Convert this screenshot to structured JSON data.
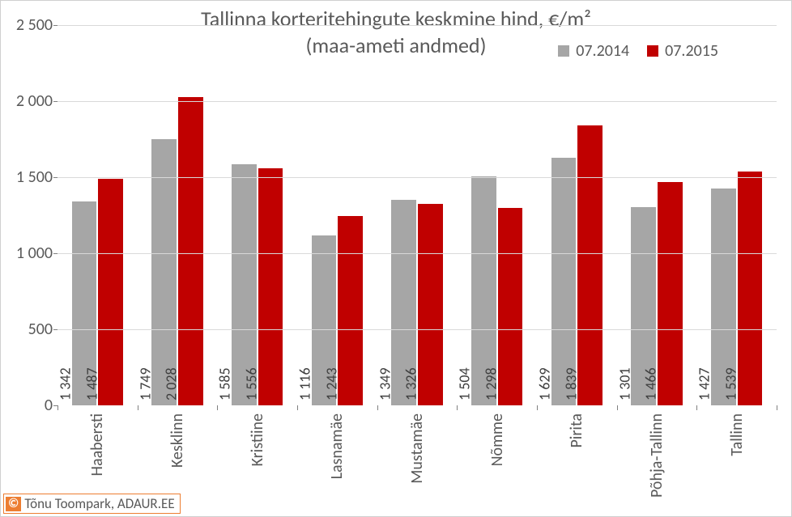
{
  "chart": {
    "type": "bar",
    "title_line1": "Tallinna korteritehingute keskmine hind, €/m²",
    "title_line2": "(maa-ameti andmed)",
    "title_fontsize": 26,
    "title_color": "#595959",
    "background_color": "#ffffff",
    "grid_color": "#d9d9d9",
    "axis_tick_color": "#808080",
    "label_fontsize": 20,
    "datalabel_fontsize": 18,
    "datalabel_rotation": -90,
    "xlabel_rotation": -90,
    "ylim": [
      0,
      2500
    ],
    "ytick_step": 500,
    "yticks": [
      {
        "v": 0,
        "label": "0"
      },
      {
        "v": 500,
        "label": "500"
      },
      {
        "v": 1000,
        "label": "1 000"
      },
      {
        "v": 1500,
        "label": "1 500"
      },
      {
        "v": 2000,
        "label": "2 000"
      },
      {
        "v": 2500,
        "label": "2 500"
      }
    ],
    "series": [
      {
        "name": "07.2014",
        "color": "#a6a6a6"
      },
      {
        "name": "07.2015",
        "color": "#c00000"
      }
    ],
    "legend_position": "top-right",
    "categories": [
      "Haabersti",
      "Kesklinn",
      "Kristiine",
      "Lasnamäe",
      "Mustamäe",
      "Nõmme",
      "Pirita",
      "Põhja-Tallinn",
      "Tallinn"
    ],
    "values": {
      "07.2014": [
        1342,
        1749,
        1585,
        1116,
        1349,
        1504,
        1629,
        1301,
        1427
      ],
      "07.2015": [
        1487,
        2028,
        1556,
        1243,
        1326,
        1298,
        1839,
        1466,
        1539
      ]
    },
    "value_labels": {
      "07.2014": [
        "1 342",
        "1 749",
        "1 585",
        "1 116",
        "1 349",
        "1 504",
        "1 629",
        "1 301",
        "1 427"
      ],
      "07.2015": [
        "1 487",
        "2 028",
        "1 556",
        "1 243",
        "1 326",
        "1 298",
        "1 839",
        "1 466",
        "1 539"
      ]
    },
    "bar_group_width": 0.64,
    "bar_gap_within_group": 0.02
  },
  "credit": {
    "symbol": "©",
    "text": "Tõnu Toompark, ADAUR.EE",
    "border_color": "#ed7d31",
    "symbol_bg": "#ed7d31",
    "symbol_fg": "#ffffff"
  }
}
